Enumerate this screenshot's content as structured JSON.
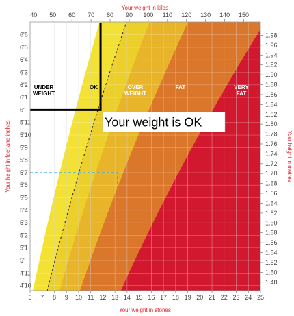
{
  "chart_data": {
    "type": "area",
    "x_top": {
      "label": "Your weight in kilos",
      "ticks": [
        40,
        50,
        60,
        70,
        80,
        90,
        100,
        110,
        120,
        130,
        140,
        150
      ],
      "range": [
        38,
        158
      ]
    },
    "x_bottom": {
      "label": "Your weight in stones",
      "ticks": [
        "6",
        "7",
        "8",
        "9",
        "10",
        "11",
        "12",
        "13",
        "14",
        "15",
        "16",
        "17",
        "18",
        "19",
        "20",
        "21",
        "22",
        "23",
        "24",
        "25"
      ],
      "range": [
        6,
        25
      ]
    },
    "y_left": {
      "label": "Your height in feet and inches",
      "ticks": [
        "4'10",
        "4'11",
        "5'",
        "5'1",
        "5'2",
        "5'3",
        "5'4",
        "5'5",
        "5'6",
        "5'7",
        "5'8",
        "5'9",
        "5'10",
        "5'11",
        "6'",
        "6'1",
        "6'2",
        "6'3",
        "6'4",
        "6'5",
        "6'6"
      ]
    },
    "y_right": {
      "label": "Your height in metres",
      "ticks": [
        "1.48",
        "1.50",
        "1.52",
        "1.54",
        "1.56",
        "1.58",
        "1.60",
        "1.62",
        "1.64",
        "1.66",
        "1.68",
        "1.70",
        "1.72",
        "1.74",
        "1.76",
        "1.78",
        "1.80",
        "1.82",
        "1.84",
        "1.86",
        "1.88",
        "1.90",
        "1.92",
        "1.94",
        "1.96",
        "1.98"
      ],
      "range": [
        1.463,
        2.007
      ]
    },
    "bands": [
      {
        "name": "UNDER WEIGHT",
        "color": "#ffffff",
        "text_color": "#000000",
        "upper_bmi": 18.5
      },
      {
        "name": "OK",
        "color": "#f3de2b",
        "text_color": "#000000",
        "upper_bmi": 25
      },
      {
        "name": "OVER WEIGHT",
        "color": "#e8b52a",
        "text_color": "#ffffff",
        "upper_bmi": 30
      },
      {
        "name": "FAT",
        "color": "#db772b",
        "text_color": "#ffffff",
        "upper_bmi": 40
      },
      {
        "name": "VERY FAT",
        "color": "#d1182e",
        "text_color": "#ffffff",
        "upper_bmi": null
      }
    ],
    "ok_shades": [
      "#f3e233",
      "#eccf2a"
    ],
    "mid_guide_bmi": 22,
    "example_point": {
      "height": "5'7",
      "weight_stones": 13.2
    },
    "marked_point": {
      "height": "6'",
      "weight_kg": 75
    },
    "callout": "Your weight is OK",
    "grid": true
  }
}
